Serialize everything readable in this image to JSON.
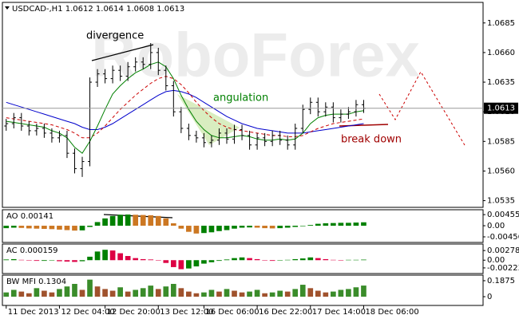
{
  "chart_data": [
    {
      "type": "ohlc",
      "title": "USDCAD-,H1  1.0612 1.0614 1.0608 1.0613",
      "watermark": "RoboForex",
      "xlim": [
        -0.5,
        62.7
      ],
      "ylim": [
        1.053,
        1.0701
      ],
      "yticks": [
        1.0535,
        {
          "value": 1.056,
          "label": "1.0560"
        },
        1.0585,
        {
          "value": 1.061,
          "label": "1.0610"
        },
        1.0635,
        {
          "value": 1.066,
          "label": "1.0660"
        },
        1.0685
      ],
      "last_price": 1.0613,
      "color": "#000000",
      "open": [
        1.0598,
        1.06,
        1.0605,
        1.0598,
        1.0594,
        1.0596,
        1.0592,
        1.0588,
        1.059,
        1.0575,
        1.0562,
        1.0568,
        1.0635,
        1.0642,
        1.0638,
        1.0645,
        1.064,
        1.0648,
        1.0652,
        1.065,
        1.066,
        1.0645,
        1.0632,
        1.061,
        1.0596,
        1.059,
        1.0588,
        1.0584,
        1.0586,
        1.0592,
        1.0587,
        1.0595,
        1.059,
        1.0582,
        1.0588,
        1.0585,
        1.059,
        1.0586,
        1.0582,
        1.0596,
        1.0612,
        1.0618,
        1.061,
        1.0614,
        1.0605,
        1.0608,
        1.061,
        1.0616
      ],
      "high": [
        1.0604,
        1.0609,
        1.0609,
        1.0602,
        1.06,
        1.06,
        1.0596,
        1.0594,
        1.0594,
        1.0579,
        1.0572,
        1.0639,
        1.0646,
        1.0646,
        1.0649,
        1.0649,
        1.0652,
        1.0656,
        1.0656,
        1.0668,
        1.0664,
        1.0649,
        1.0636,
        1.0614,
        1.06,
        1.0594,
        1.0592,
        1.059,
        1.0596,
        1.0596,
        1.0599,
        1.0599,
        1.0594,
        1.0592,
        1.0592,
        1.0594,
        1.0594,
        1.059,
        1.06,
        1.0616,
        1.0622,
        1.0622,
        1.0618,
        1.0618,
        1.0612,
        1.0614,
        1.062,
        1.062
      ],
      "low": [
        1.0594,
        1.0596,
        1.0594,
        1.059,
        1.059,
        1.0588,
        1.0584,
        1.0584,
        1.0571,
        1.0558,
        1.0555,
        1.0564,
        1.0631,
        1.0634,
        1.0634,
        1.0636,
        1.0636,
        1.0644,
        1.0646,
        1.0646,
        1.0641,
        1.0628,
        1.0606,
        1.0592,
        1.0586,
        1.0584,
        1.058,
        1.058,
        1.0582,
        1.0583,
        1.0583,
        1.0586,
        1.0578,
        1.0578,
        1.0581,
        1.0581,
        1.0582,
        1.0578,
        1.0578,
        1.0592,
        1.0608,
        1.0606,
        1.0606,
        1.0601,
        1.0601,
        1.0604,
        1.0606,
        1.0609
      ],
      "close": [
        1.06,
        1.0605,
        1.0598,
        1.0594,
        1.0596,
        1.0592,
        1.0588,
        1.059,
        1.0575,
        1.0562,
        1.0568,
        1.0635,
        1.0642,
        1.0638,
        1.0645,
        1.064,
        1.0648,
        1.0652,
        1.065,
        1.066,
        1.0645,
        1.0632,
        1.061,
        1.0596,
        1.059,
        1.0588,
        1.0584,
        1.0586,
        1.0592,
        1.0587,
        1.0595,
        1.059,
        1.0582,
        1.0588,
        1.0585,
        1.059,
        1.0586,
        1.0582,
        1.0596,
        1.0612,
        1.0618,
        1.061,
        1.0614,
        1.0605,
        1.0608,
        1.061,
        1.0616,
        1.0613
      ],
      "lines": [
        {
          "color": "#0000cc",
          "dash": false,
          "values": [
            1.0618,
            1.0616,
            1.0614,
            1.0612,
            1.061,
            1.0608,
            1.0606,
            1.0604,
            1.0602,
            1.06,
            1.0597,
            1.0595,
            1.0595,
            1.0597,
            1.06,
            1.0604,
            1.0608,
            1.0612,
            1.0616,
            1.062,
            1.0624,
            1.0627,
            1.0628,
            1.0627,
            1.0625,
            1.0622,
            1.0618,
            1.0614,
            1.061,
            1.0606,
            1.0603,
            1.06,
            1.0598,
            1.0596,
            1.0595,
            1.0594,
            1.0593,
            1.0592,
            1.0592,
            1.0592,
            1.0593,
            1.0594,
            1.0595,
            1.0596,
            1.0597,
            1.0598,
            1.0599,
            1.06
          ]
        },
        {
          "color": "#cc0000",
          "dash": true,
          "values": [
            1.0605,
            1.0604,
            1.0603,
            1.0602,
            1.0601,
            1.06,
            1.0599,
            1.0597,
            1.0595,
            1.0592,
            1.0588,
            1.0588,
            1.0592,
            1.0598,
            1.0605,
            1.0612,
            1.0618,
            1.0624,
            1.0629,
            1.0634,
            1.0638,
            1.064,
            1.0638,
            1.0633,
            1.0626,
            1.0618,
            1.0611,
            1.0605,
            1.06,
            1.0597,
            1.0595,
            1.0594,
            1.0593,
            1.0592,
            1.0591,
            1.059,
            1.059,
            1.0589,
            1.0589,
            1.059,
            1.0593,
            1.0596,
            1.0598,
            1.06,
            1.0601,
            1.0602,
            1.0603,
            1.0604
          ]
        },
        {
          "color": "#008000",
          "dash": false,
          "values": [
            1.0602,
            1.0601,
            1.06,
            1.0599,
            1.0598,
            1.0597,
            1.0594,
            1.0592,
            1.0588,
            1.058,
            1.0575,
            1.0585,
            1.0598,
            1.0612,
            1.0625,
            1.0632,
            1.0638,
            1.0643,
            1.0646,
            1.065,
            1.0652,
            1.0648,
            1.0638,
            1.0624,
            1.0612,
            1.0602,
            1.0595,
            1.059,
            1.0588,
            1.0588,
            1.0589,
            1.059,
            1.0589,
            1.0587,
            1.0586,
            1.0586,
            1.0587,
            1.0586,
            1.0587,
            1.0592,
            1.06,
            1.0605,
            1.0607,
            1.0608,
            1.0608,
            1.0608,
            1.061,
            1.0611
          ]
        }
      ],
      "annotations": [
        {
          "text": "divergence",
          "color": "#000000"
        },
        {
          "text": "angulation",
          "color": "#008000"
        },
        {
          "text": "break down",
          "color": "#a00000"
        }
      ]
    },
    {
      "type": "bar",
      "title": "AO 0.00141",
      "xlim": [
        -0.5,
        62.7
      ],
      "ylim": [
        -0.0062,
        0.0059
      ],
      "yticks": [
        0.00455,
        {
          "value": 0,
          "label": "0.00"
        },
        -0.00456
      ],
      "up_color": "#008000",
      "down_color": "#cc7722",
      "values": [
        -0.001,
        -0.0008,
        -0.0009,
        -0.0011,
        -0.0012,
        -0.0013,
        -0.0014,
        -0.0016,
        -0.0018,
        -0.002,
        -0.0019,
        -0.0005,
        0.0015,
        0.003,
        0.004,
        0.0045,
        0.0046,
        0.0045,
        0.0044,
        0.0043,
        0.004,
        0.003,
        0.001,
        -0.0012,
        -0.0025,
        -0.0032,
        -0.003,
        -0.0027,
        -0.0022,
        -0.0018,
        -0.0012,
        -0.0008,
        -0.0007,
        -0.0008,
        -0.001,
        -0.0011,
        -0.001,
        -0.0008,
        -0.0005,
        -0.0002,
        0.0003,
        0.0008,
        0.001,
        0.0011,
        0.0012,
        0.0012,
        0.0013,
        0.00141
      ]
    },
    {
      "type": "bar",
      "title": "AC 0.000159",
      "xlim": [
        -0.5,
        62.7
      ],
      "ylim": [
        -0.0034,
        0.0042
      ],
      "yticks": [
        0.002786,
        {
          "value": 0,
          "label": "0.00"
        },
        -0.00223
      ],
      "up_color": "#008000",
      "down_color": "#dd0044",
      "values": [
        0.0002,
        0.0003,
        0.0001,
        -0.0001,
        -0.0002,
        -0.0002,
        -0.0001,
        -0.0003,
        -0.0004,
        -0.0005,
        -0.0003,
        0.001,
        0.0025,
        0.003,
        0.0028,
        0.002,
        0.0012,
        0.0006,
        0.0003,
        0.0002,
        0.0,
        -0.0008,
        -0.002,
        -0.0026,
        -0.0024,
        -0.0018,
        -0.001,
        -0.0006,
        -0.0002,
        0.0002,
        0.0006,
        0.0008,
        0.0006,
        0.0003,
        0.0,
        -0.0002,
        -0.0001,
        0.0001,
        0.0003,
        0.0005,
        0.0008,
        0.0006,
        0.0003,
        0.0001,
        0.0,
        0.0001,
        0.0001,
        0.000159
      ]
    },
    {
      "type": "bar",
      "title": "BW MFI 0.1304",
      "xlim": [
        -0.5,
        62.7
      ],
      "ylim": [
        -0.084,
        0.234
      ],
      "yticks": [
        0.1875,
        0
      ],
      "up_color": "#3a8c2a",
      "down_color": "#a0522d",
      "xticks": [
        {
          "value": 0,
          "label": "11 Dec 2013"
        },
        {
          "value": 7,
          "label": "12 Dec 04:00"
        },
        {
          "value": 13,
          "label": "12 Dec 20:00"
        },
        {
          "value": 20,
          "label": "13 Dec 12:00"
        },
        {
          "value": 26,
          "label": "16 Dec 06:00"
        },
        {
          "value": 33,
          "label": "16 Dec 22:00"
        },
        {
          "value": 40,
          "label": "17 Dec 14:00"
        },
        {
          "value": 47,
          "label": "18 Dec 06:00"
        }
      ],
      "values": [
        0.05,
        0.08,
        0.06,
        0.04,
        0.1,
        0.07,
        0.05,
        0.09,
        0.12,
        0.15,
        0.08,
        0.2,
        0.12,
        0.09,
        0.07,
        0.11,
        0.06,
        0.08,
        0.1,
        0.13,
        0.09,
        0.12,
        0.15,
        0.1,
        0.06,
        0.04,
        0.05,
        0.08,
        0.06,
        0.09,
        0.07,
        0.05,
        0.06,
        0.08,
        0.04,
        0.05,
        0.07,
        0.06,
        0.09,
        0.14,
        0.1,
        0.07,
        0.05,
        0.06,
        0.08,
        0.09,
        0.11,
        0.1304
      ]
    }
  ]
}
